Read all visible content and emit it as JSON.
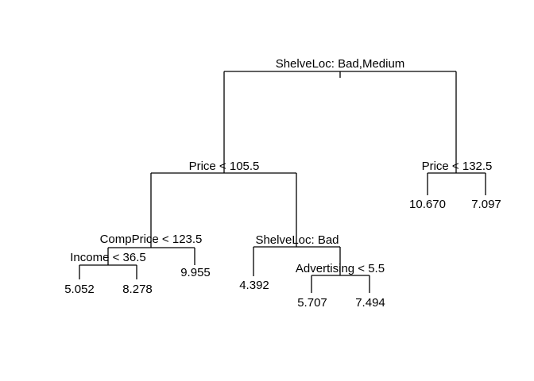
{
  "diagram": {
    "type": "regression-tree",
    "nodes": {
      "root": {
        "label": "ShelveLoc: Bad,Medium"
      },
      "price_left": {
        "label": "Price < 105.5"
      },
      "price_right": {
        "label": "Price < 132.5"
      },
      "compprice": {
        "label": "CompPrice < 123.5"
      },
      "income": {
        "label": "Income < 36.5"
      },
      "shelveloc_bad": {
        "label": "ShelveLoc: Bad"
      },
      "advertising": {
        "label": "Advertising < 5.5"
      }
    },
    "leaves": {
      "income_lo": "5.052",
      "income_hi": "8.278",
      "compprice_hi": "9.955",
      "shelveloc_bad_yes": "4.392",
      "advertising_lo": "5.707",
      "advertising_hi": "7.494",
      "price_right_lo": "10.670",
      "price_right_hi": "7.097"
    }
  }
}
